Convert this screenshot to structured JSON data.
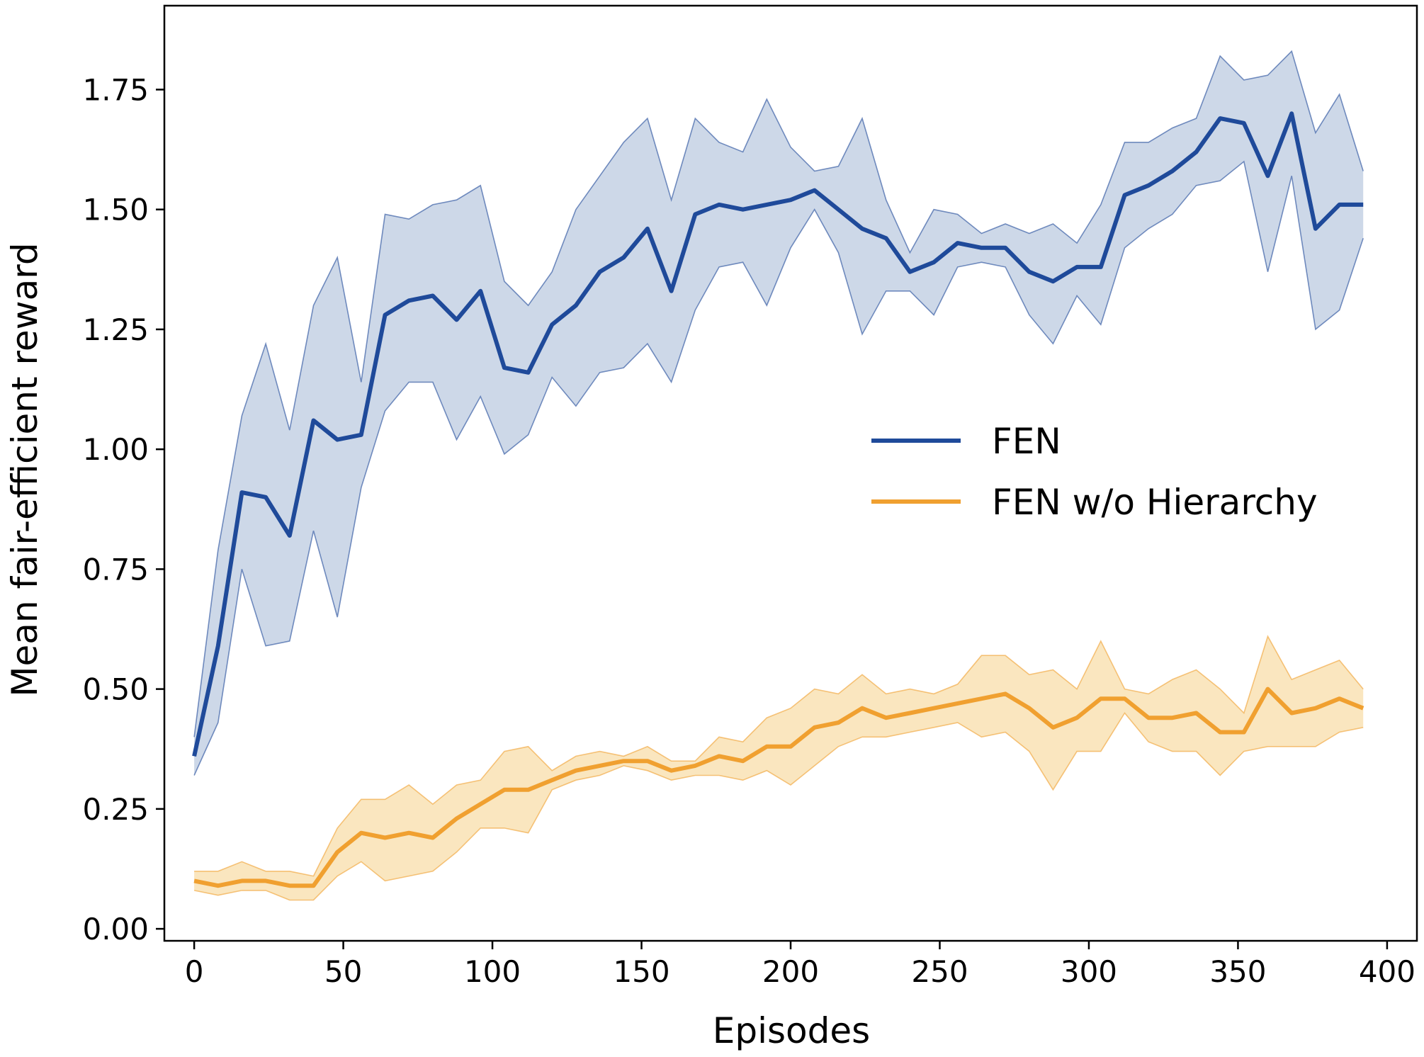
{
  "chart_data": {
    "type": "line",
    "xlabel": "Episodes",
    "ylabel": "Mean fair-efficient reward",
    "xlim": [
      -10,
      410
    ],
    "ylim": [
      -0.025,
      1.925
    ],
    "xticks": [
      0,
      50,
      100,
      150,
      200,
      250,
      300,
      350,
      400
    ],
    "xtick_labels": [
      "0",
      "50",
      "100",
      "150",
      "200",
      "250",
      "300",
      "350",
      "400"
    ],
    "yticks": [
      0,
      0.25,
      0.5,
      0.75,
      1.0,
      1.25,
      1.5,
      1.75
    ],
    "ytick_labels": [
      "0.00",
      "0.25",
      "0.50",
      "0.75",
      "1.00",
      "1.25",
      "1.50",
      "1.75"
    ],
    "grid": false,
    "legend_position": "center-right",
    "x": [
      0,
      8,
      16,
      24,
      32,
      40,
      48,
      56,
      64,
      72,
      80,
      88,
      96,
      104,
      112,
      120,
      128,
      136,
      144,
      152,
      160,
      168,
      176,
      184,
      192,
      200,
      208,
      216,
      224,
      232,
      240,
      248,
      256,
      264,
      272,
      280,
      288,
      296,
      304,
      312,
      320,
      328,
      336,
      344,
      352,
      360,
      368,
      376,
      384,
      392
    ],
    "series": [
      {
        "name": "FEN",
        "color": "#1f4a9a",
        "band_color": "#c8d4e6",
        "mean": [
          0.36,
          0.59,
          0.91,
          0.9,
          0.82,
          1.06,
          1.02,
          1.03,
          1.28,
          1.31,
          1.32,
          1.27,
          1.33,
          1.17,
          1.16,
          1.26,
          1.3,
          1.37,
          1.4,
          1.46,
          1.33,
          1.49,
          1.51,
          1.5,
          1.51,
          1.52,
          1.54,
          1.5,
          1.46,
          1.44,
          1.37,
          1.39,
          1.43,
          1.42,
          1.42,
          1.37,
          1.35,
          1.38,
          1.38,
          1.53,
          1.55,
          1.58,
          1.62,
          1.69,
          1.68,
          1.57,
          1.7,
          1.46,
          1.51,
          1.51
        ],
        "upper": [
          0.4,
          0.79,
          1.07,
          1.22,
          1.04,
          1.3,
          1.4,
          1.14,
          1.49,
          1.48,
          1.51,
          1.52,
          1.55,
          1.35,
          1.3,
          1.37,
          1.5,
          1.57,
          1.64,
          1.69,
          1.52,
          1.69,
          1.64,
          1.62,
          1.73,
          1.63,
          1.58,
          1.59,
          1.69,
          1.52,
          1.41,
          1.5,
          1.49,
          1.45,
          1.47,
          1.45,
          1.47,
          1.43,
          1.51,
          1.64,
          1.64,
          1.67,
          1.69,
          1.82,
          1.77,
          1.78,
          1.83,
          1.66,
          1.74,
          1.58
        ],
        "lower": [
          0.32,
          0.43,
          0.75,
          0.59,
          0.6,
          0.83,
          0.65,
          0.92,
          1.08,
          1.14,
          1.14,
          1.02,
          1.11,
          0.99,
          1.03,
          1.15,
          1.09,
          1.16,
          1.17,
          1.22,
          1.14,
          1.29,
          1.38,
          1.39,
          1.3,
          1.42,
          1.5,
          1.41,
          1.24,
          1.33,
          1.33,
          1.28,
          1.38,
          1.39,
          1.38,
          1.28,
          1.22,
          1.32,
          1.26,
          1.42,
          1.46,
          1.49,
          1.55,
          1.56,
          1.6,
          1.37,
          1.57,
          1.25,
          1.29,
          1.44
        ]
      },
      {
        "name": "FEN w/o Hierarchy",
        "color": "#f0a030",
        "band_color": "#fae3b8",
        "mean": [
          0.1,
          0.09,
          0.1,
          0.1,
          0.09,
          0.09,
          0.16,
          0.2,
          0.19,
          0.2,
          0.19,
          0.23,
          0.26,
          0.29,
          0.29,
          0.31,
          0.33,
          0.34,
          0.35,
          0.35,
          0.33,
          0.34,
          0.36,
          0.35,
          0.38,
          0.38,
          0.42,
          0.43,
          0.46,
          0.44,
          0.45,
          0.46,
          0.47,
          0.48,
          0.49,
          0.46,
          0.42,
          0.44,
          0.48,
          0.48,
          0.44,
          0.44,
          0.45,
          0.41,
          0.41,
          0.5,
          0.45,
          0.46,
          0.48,
          0.46
        ],
        "upper": [
          0.12,
          0.12,
          0.14,
          0.12,
          0.12,
          0.11,
          0.21,
          0.27,
          0.27,
          0.3,
          0.26,
          0.3,
          0.31,
          0.37,
          0.38,
          0.33,
          0.36,
          0.37,
          0.36,
          0.38,
          0.35,
          0.35,
          0.4,
          0.39,
          0.44,
          0.46,
          0.5,
          0.49,
          0.53,
          0.49,
          0.5,
          0.49,
          0.51,
          0.57,
          0.57,
          0.53,
          0.54,
          0.5,
          0.6,
          0.5,
          0.49,
          0.52,
          0.54,
          0.5,
          0.45,
          0.61,
          0.52,
          0.54,
          0.56,
          0.5
        ],
        "lower": [
          0.08,
          0.07,
          0.08,
          0.08,
          0.06,
          0.06,
          0.11,
          0.14,
          0.1,
          0.11,
          0.12,
          0.16,
          0.21,
          0.21,
          0.2,
          0.29,
          0.31,
          0.32,
          0.34,
          0.33,
          0.31,
          0.32,
          0.32,
          0.31,
          0.33,
          0.3,
          0.34,
          0.38,
          0.4,
          0.4,
          0.41,
          0.42,
          0.43,
          0.4,
          0.41,
          0.37,
          0.29,
          0.37,
          0.37,
          0.45,
          0.39,
          0.37,
          0.37,
          0.32,
          0.37,
          0.38,
          0.38,
          0.38,
          0.41,
          0.42
        ]
      }
    ]
  }
}
